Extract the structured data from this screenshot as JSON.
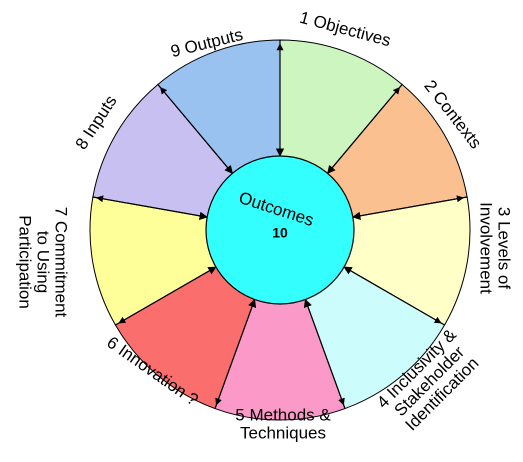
{
  "center": {
    "title": "Outcomes",
    "number": "10"
  },
  "segments": [
    {
      "lines": [
        "1 Objectives"
      ],
      "color": "#ccf5c0"
    },
    {
      "lines": [
        "2 Contexts"
      ],
      "color": "#fbc08f"
    },
    {
      "lines": [
        "3 Levels of",
        "Involvement"
      ],
      "color": "#ffffc8"
    },
    {
      "lines": [
        "4 Inclusivity &",
        "Stakeholder",
        "Identification"
      ],
      "color": "#ccfcfb"
    },
    {
      "lines": [
        "5 Methods &",
        "Techniques"
      ],
      "color": "#fb99c9"
    },
    {
      "lines": [
        "6 Innovation ?"
      ],
      "color": "#fb6e6e"
    },
    {
      "lines": [
        "7 Commitment",
        "to Using",
        "Participation"
      ],
      "color": "#ffff99"
    },
    {
      "lines": [
        "8 Inputs"
      ],
      "color": "#c8c0f0"
    },
    {
      "lines": [
        "9 Outputs"
      ],
      "color": "#99c2f0"
    }
  ]
}
